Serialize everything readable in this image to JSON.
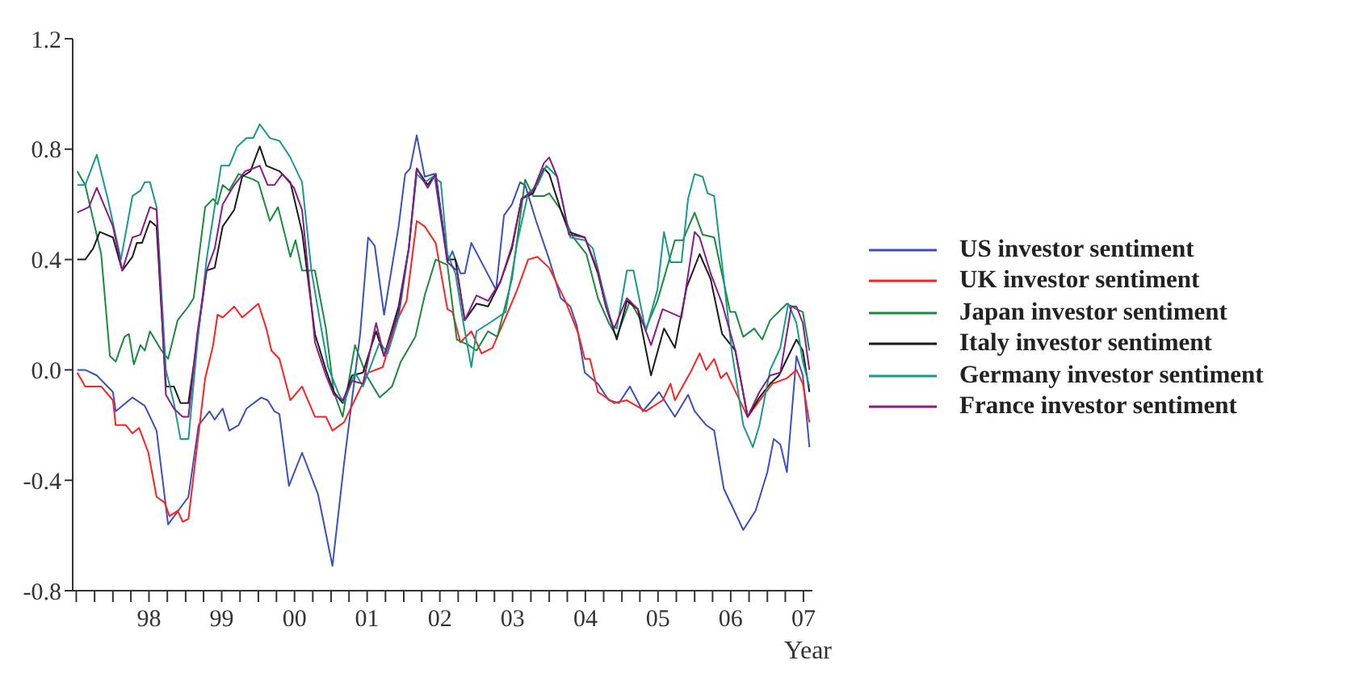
{
  "chart_data": {
    "type": "line",
    "xlabel": "Year",
    "legend": "right",
    "xlim": [
      "1997-06-13",
      "2007-08-15"
    ],
    "xticks": [
      {
        "value": "1997-07-01",
        "label": null
      },
      {
        "value": "1997-10-01",
        "label": null
      },
      {
        "value": "1998-01-01",
        "label": null
      },
      {
        "value": "1998-04-01",
        "label": null
      },
      {
        "value": "1998-07-01",
        "label": "98"
      },
      {
        "value": "1998-10-01",
        "label": null
      },
      {
        "value": "1999-01-01",
        "label": null
      },
      {
        "value": "1999-04-01",
        "label": null
      },
      {
        "value": "1999-07-01",
        "label": "99"
      },
      {
        "value": "1999-10-01",
        "label": null
      },
      {
        "value": "2000-01-01",
        "label": null
      },
      {
        "value": "2000-04-01",
        "label": null
      },
      {
        "value": "2000-07-01",
        "label": "00"
      },
      {
        "value": "2000-10-01",
        "label": null
      },
      {
        "value": "2001-01-01",
        "label": null
      },
      {
        "value": "2001-04-01",
        "label": null
      },
      {
        "value": "2001-07-01",
        "label": "01"
      },
      {
        "value": "2001-10-01",
        "label": null
      },
      {
        "value": "2002-01-01",
        "label": null
      },
      {
        "value": "2002-04-01",
        "label": null
      },
      {
        "value": "2002-07-01",
        "label": "02"
      },
      {
        "value": "2002-10-01",
        "label": null
      },
      {
        "value": "2003-01-01",
        "label": null
      },
      {
        "value": "2003-04-01",
        "label": null
      },
      {
        "value": "2003-07-01",
        "label": "03"
      },
      {
        "value": "2003-10-01",
        "label": null
      },
      {
        "value": "2004-01-01",
        "label": null
      },
      {
        "value": "2004-04-01",
        "label": null
      },
      {
        "value": "2004-07-01",
        "label": "04"
      },
      {
        "value": "2004-10-01",
        "label": null
      },
      {
        "value": "2005-01-01",
        "label": null
      },
      {
        "value": "2005-04-01",
        "label": null
      },
      {
        "value": "2005-07-01",
        "label": "05"
      },
      {
        "value": "2005-10-01",
        "label": null
      },
      {
        "value": "2006-01-01",
        "label": null
      },
      {
        "value": "2006-04-01",
        "label": null
      },
      {
        "value": "2006-07-01",
        "label": "06"
      },
      {
        "value": "2006-10-01",
        "label": null
      },
      {
        "value": "2007-01-01",
        "label": null
      },
      {
        "value": "2007-04-01",
        "label": null
      },
      {
        "value": "2007-07-01",
        "label": "07"
      }
    ],
    "ylim": [
      -0.8,
      1.2
    ],
    "yticks": [
      -0.8,
      -0.4,
      {
        "value": 0,
        "label": "0.0"
      },
      0.4,
      0.8,
      1.2
    ],
    "series": [
      {
        "name": "US investor sentiment",
        "color": "#3a4fc0",
        "x": [
          "1997-07-06",
          "1997-08-15",
          "1997-10-12",
          "1998-01-01",
          "1998-01-15",
          "1998-04-09",
          "1998-06-10",
          "1998-08-08",
          "1998-10-05",
          "1999-01-15",
          "1999-03-07",
          "1999-05-01",
          "1999-05-27",
          "1999-07-06",
          "1999-08-08",
          "1999-09-24",
          "1999-11-03",
          "2000-01-15",
          "2000-02-17",
          "2000-03-22",
          "2000-04-16",
          "2000-06-03",
          "2000-08-08",
          "2000-10-27",
          "2001-01-08",
          "2001-03-07",
          "2001-05-27",
          "2001-07-06",
          "2001-08-08",
          "2001-09-24",
          "2001-12-06",
          "2002-01-08",
          "2002-02-02",
          "2002-03-07",
          "2002-04-16",
          "2002-06-03",
          "2002-08-08",
          "2002-09-02",
          "2002-10-12",
          "2002-11-03",
          "2002-12-06",
          "2003-02-10",
          "2003-04-09",
          "2003-05-19",
          "2003-06-28",
          "2003-08-08",
          "2003-09-02",
          "2003-10-27",
          "2004-01-01",
          "2004-02-28",
          "2004-04-16",
          "2004-05-19",
          "2004-06-28",
          "2004-09-02",
          "2004-10-27",
          "2004-12-17",
          "2005-02-10",
          "2005-04-16",
          "2005-07-06",
          "2005-09-24",
          "2005-11-29",
          "2006-01-01",
          "2006-02-28",
          "2006-04-09",
          "2006-05-27",
          "2006-09-02",
          "2006-11-03",
          "2007-01-01",
          "2007-02-02",
          "2007-03-07",
          "2007-04-09",
          "2007-05-27",
          "2007-06-28",
          "2007-07-31"
        ],
        "values": [
          0,
          0,
          -0.02,
          -0.08,
          -0.15,
          -0.1,
          -0.13,
          -0.22,
          -0.56,
          -0.46,
          -0.2,
          -0.15,
          -0.18,
          -0.14,
          -0.22,
          -0.2,
          -0.14,
          -0.1,
          -0.11,
          -0.15,
          -0.16,
          -0.42,
          -0.3,
          -0.45,
          -0.71,
          -0.34,
          0.13,
          0.48,
          0.45,
          0.2,
          0.52,
          0.71,
          0.73,
          0.85,
          0.7,
          0.71,
          0.39,
          0.43,
          0.35,
          0.35,
          0.46,
          0.37,
          0.29,
          0.56,
          0.6,
          0.68,
          0.67,
          0.54,
          0.4,
          0.26,
          0.23,
          0.16,
          -0.01,
          -0.05,
          -0.11,
          -0.12,
          -0.06,
          -0.15,
          -0.08,
          -0.17,
          -0.09,
          -0.15,
          -0.2,
          -0.22,
          -0.43,
          -0.58,
          -0.51,
          -0.37,
          -0.25,
          -0.27,
          -0.37,
          0.05,
          -0.02,
          -0.28
        ]
      },
      {
        "name": "UK investor sentiment",
        "color": "#ff2020",
        "x": [
          "1997-07-06",
          "1997-08-15",
          "1997-11-03",
          "1998-01-01",
          "1998-01-15",
          "1998-03-07",
          "1998-04-09",
          "1998-05-12",
          "1998-06-28",
          "1998-08-08",
          "1998-09-17",
          "1998-10-12",
          "1998-11-22",
          "1998-12-17",
          "1999-01-15",
          "1999-04-09",
          "1999-05-19",
          "1999-06-10",
          "1999-07-06",
          "1999-09-02",
          "1999-10-12",
          "2000-01-01",
          "2000-02-10",
          "2000-03-07",
          "2000-04-16",
          "2000-06-10",
          "2000-08-08",
          "2000-10-12",
          "2000-12-06",
          "2001-01-08",
          "2001-03-07",
          "2001-05-19",
          "2001-07-06",
          "2001-09-17",
          "2001-11-22",
          "2002-01-15",
          "2002-03-07",
          "2002-04-16",
          "2002-06-10",
          "2002-08-08",
          "2002-09-02",
          "2002-10-12",
          "2002-12-06",
          "2003-01-26",
          "2003-03-22",
          "2003-05-27",
          "2003-07-24",
          "2003-09-17",
          "2003-11-03",
          "2004-01-01",
          "2004-03-22",
          "2004-05-27",
          "2004-06-28",
          "2004-07-24",
          "2004-09-02",
          "2004-11-22",
          "2005-01-26",
          "2005-05-01",
          "2005-07-24",
          "2005-09-02",
          "2005-09-24",
          "2005-12-17",
          "2006-01-26",
          "2006-02-28",
          "2006-04-09",
          "2006-05-12",
          "2006-06-10",
          "2006-08-08",
          "2006-09-24",
          "2006-11-03",
          "2007-01-26",
          "2007-04-09",
          "2007-05-27",
          "2007-06-28",
          "2007-07-31"
        ],
        "values": [
          -0.01,
          -0.06,
          -0.06,
          -0.11,
          -0.2,
          -0.2,
          -0.23,
          -0.21,
          -0.3,
          -0.46,
          -0.48,
          -0.53,
          -0.51,
          -0.55,
          -0.54,
          -0.03,
          0.09,
          0.2,
          0.19,
          0.23,
          0.19,
          0.24,
          0.15,
          0.07,
          0.04,
          -0.11,
          -0.06,
          -0.17,
          -0.17,
          -0.22,
          -0.19,
          -0.08,
          -0.01,
          0.01,
          0.17,
          0.25,
          0.54,
          0.52,
          0.46,
          0.22,
          0.21,
          0.1,
          0.14,
          0.06,
          0.08,
          0.19,
          0.29,
          0.4,
          0.41,
          0.37,
          0.25,
          0.13,
          0.04,
          0.04,
          -0.08,
          -0.12,
          -0.11,
          -0.15,
          -0.11,
          -0.05,
          -0.11,
          0,
          0.06,
          0,
          0.04,
          -0.03,
          -0.01,
          -0.1,
          -0.17,
          -0.13,
          -0.05,
          -0.03,
          0,
          -0.05,
          -0.19
        ]
      },
      {
        "name": "Japan investor sentiment",
        "color": "#1a8a3c",
        "x": [
          "1997-07-06",
          "1997-08-15",
          "1997-11-03",
          "1997-12-17",
          "1998-01-15",
          "1998-02-28",
          "1998-03-22",
          "1998-04-16",
          "1998-05-19",
          "1998-06-10",
          "1998-07-06",
          "1998-09-02",
          "1998-10-05",
          "1998-11-22",
          "1999-01-15",
          "1999-02-10",
          "1999-04-09",
          "1999-05-19",
          "1999-06-10",
          "1999-07-06",
          "1999-08-08",
          "1999-09-24",
          "1999-12-06",
          "2000-01-01",
          "2000-02-28",
          "2000-04-09",
          "2000-06-10",
          "2000-07-06",
          "2000-08-08",
          "2000-10-12",
          "2000-12-06",
          "2001-01-15",
          "2001-02-28",
          "2001-05-01",
          "2001-06-28",
          "2001-09-02",
          "2001-11-03",
          "2001-12-17",
          "2002-02-28",
          "2002-04-16",
          "2002-06-10",
          "2002-08-08",
          "2002-09-24",
          "2002-11-22",
          "2003-01-01",
          "2003-02-28",
          "2003-04-16",
          "2003-06-28",
          "2003-09-02",
          "2003-10-12",
          "2003-12-06",
          "2004-01-01",
          "2004-02-28",
          "2004-05-01",
          "2004-07-06",
          "2004-09-02",
          "2004-10-27",
          "2004-12-06",
          "2005-02-10",
          "2005-05-01",
          "2005-06-28",
          "2005-09-24",
          "2005-11-03",
          "2006-01-01",
          "2006-02-10",
          "2006-04-09",
          "2006-06-28",
          "2006-07-24",
          "2006-09-02",
          "2006-10-27",
          "2006-12-06",
          "2007-01-15",
          "2007-04-09",
          "2007-05-27",
          "2007-06-28",
          "2007-07-31"
        ],
        "values": [
          0.72,
          0.67,
          0.42,
          0.05,
          0.03,
          0.12,
          0.13,
          0.02,
          0.09,
          0.07,
          0.14,
          0.07,
          0.04,
          0.18,
          0.23,
          0.26,
          0.59,
          0.62,
          0.6,
          0.67,
          0.65,
          0.71,
          0.69,
          0.68,
          0.54,
          0.59,
          0.41,
          0.47,
          0.36,
          0.36,
          0.15,
          -0.08,
          -0.17,
          0.09,
          -0.02,
          -0.1,
          -0.06,
          0.03,
          0.12,
          0.27,
          0.4,
          0.38,
          0.11,
          0.09,
          0.07,
          0.14,
          0.12,
          0.33,
          0.69,
          0.63,
          0.63,
          0.64,
          0.58,
          0.48,
          0.42,
          0.26,
          0.17,
          0.12,
          0.25,
          0.15,
          0.25,
          0.47,
          0.47,
          0.57,
          0.49,
          0.48,
          0.21,
          0.21,
          0.12,
          0.15,
          0.11,
          0.18,
          0.24,
          0.22,
          0.21,
          0.07
        ]
      },
      {
        "name": "Italy investor sentiment",
        "color": "#1a1a1a",
        "x": [
          "1997-07-06",
          "1997-08-15",
          "1997-09-24",
          "1997-10-27",
          "1998-01-01",
          "1998-02-17",
          "1998-04-09",
          "1998-05-01",
          "1998-05-27",
          "1998-07-06",
          "1998-08-08",
          "1998-09-24",
          "1998-11-03",
          "1998-12-06",
          "1999-01-15",
          "1999-02-28",
          "1999-04-16",
          "1999-05-27",
          "1999-07-06",
          "1999-09-02",
          "1999-10-12",
          "1999-11-22",
          "2000-01-08",
          "2000-02-10",
          "2000-04-16",
          "2000-06-10",
          "2000-08-08",
          "2000-10-12",
          "2000-12-06",
          "2001-01-15",
          "2001-02-28",
          "2001-04-16",
          "2001-06-10",
          "2001-08-15",
          "2001-09-24",
          "2001-12-06",
          "2002-01-26",
          "2002-03-07",
          "2002-05-01",
          "2002-06-10",
          "2002-08-08",
          "2002-09-17",
          "2002-11-03",
          "2003-01-01",
          "2003-02-28",
          "2003-05-01",
          "2003-06-28",
          "2003-08-15",
          "2003-10-12",
          "2003-12-06",
          "2004-01-01",
          "2004-02-28",
          "2004-04-09",
          "2004-06-28",
          "2004-09-02",
          "2004-10-12",
          "2004-12-06",
          "2005-01-26",
          "2005-03-22",
          "2005-05-27",
          "2005-07-31",
          "2005-09-24",
          "2005-11-22",
          "2006-01-26",
          "2006-03-22",
          "2006-05-19",
          "2006-07-24",
          "2006-09-24",
          "2006-11-22",
          "2007-01-15",
          "2007-02-28",
          "2007-04-16",
          "2007-05-27",
          "2007-06-28",
          "2007-07-31"
        ],
        "values": [
          0.4,
          0.4,
          0.44,
          0.5,
          0.48,
          0.36,
          0.41,
          0.46,
          0.46,
          0.54,
          0.52,
          -0.06,
          -0.06,
          -0.12,
          -0.12,
          0.11,
          0.36,
          0.37,
          0.52,
          0.58,
          0.7,
          0.72,
          0.81,
          0.74,
          0.72,
          0.68,
          0.5,
          0.13,
          0,
          -0.08,
          -0.12,
          -0.02,
          -0.01,
          0.14,
          0.05,
          0.23,
          0.44,
          0.73,
          0.67,
          0.71,
          0.4,
          0.4,
          0.18,
          0.24,
          0.23,
          0.32,
          0.44,
          0.62,
          0.64,
          0.73,
          0.71,
          0.58,
          0.5,
          0.48,
          0.35,
          0.23,
          0.11,
          0.25,
          0.22,
          -0.02,
          0.15,
          0.08,
          0.3,
          0.42,
          0.33,
          0.13,
          0.07,
          -0.17,
          -0.1,
          -0.05,
          -0.02,
          0.05,
          0.11,
          0.07,
          -0.08
        ]
      },
      {
        "name": "Germany investor sentiment",
        "color": "#169a8c",
        "x": [
          "1997-07-06",
          "1997-08-15",
          "1997-10-12",
          "1997-12-06",
          "1998-02-10",
          "1998-04-09",
          "1998-05-19",
          "1998-06-10",
          "1998-07-06",
          "1998-08-08",
          "1998-09-24",
          "1998-11-03",
          "1998-12-06",
          "1999-01-15",
          "1999-02-28",
          "1999-04-16",
          "1999-06-28",
          "1999-08-08",
          "1999-09-17",
          "1999-11-03",
          "1999-12-06",
          "2000-01-08",
          "2000-02-28",
          "2000-04-16",
          "2000-06-10",
          "2000-08-08",
          "2000-09-24",
          "2000-11-03",
          "2000-12-17",
          "2001-02-10",
          "2001-03-07",
          "2001-05-01",
          "2001-06-10",
          "2001-09-02",
          "2001-10-12",
          "2001-12-06",
          "2002-01-26",
          "2002-03-07",
          "2002-04-16",
          "2002-05-27",
          "2002-07-06",
          "2002-08-08",
          "2002-09-17",
          "2002-10-27",
          "2002-12-06",
          "2003-01-01",
          "2003-03-07",
          "2003-05-27",
          "2003-07-24",
          "2003-09-17",
          "2003-11-03",
          "2003-12-17",
          "2004-02-10",
          "2004-03-22",
          "2004-04-16",
          "2004-06-28",
          "2004-08-08",
          "2004-09-24",
          "2004-11-14",
          "2004-12-06",
          "2005-01-26",
          "2005-02-28",
          "2005-05-01",
          "2005-06-28",
          "2005-07-31",
          "2005-09-02",
          "2005-10-27",
          "2005-11-29",
          "2006-01-01",
          "2006-02-10",
          "2006-03-07",
          "2006-04-09",
          "2006-05-27",
          "2006-07-06",
          "2006-09-02",
          "2006-10-20",
          "2006-11-22",
          "2007-01-15",
          "2007-03-07",
          "2007-04-16",
          "2007-05-27",
          "2007-06-28",
          "2007-07-31"
        ],
        "values": [
          0.67,
          0.67,
          0.78,
          0.62,
          0.4,
          0.63,
          0.65,
          0.68,
          0.68,
          0.59,
          0,
          -0.12,
          -0.25,
          -0.25,
          0.09,
          0.4,
          0.74,
          0.74,
          0.81,
          0.84,
          0.84,
          0.89,
          0.84,
          0.83,
          0.77,
          0.68,
          0.36,
          0.19,
          0.01,
          -0.09,
          -0.12,
          -0.01,
          -0.06,
          0.1,
          0.06,
          0.19,
          0.44,
          0.71,
          0.68,
          0.7,
          0.68,
          0.42,
          0.35,
          0.17,
          0.01,
          0.14,
          0.17,
          0.21,
          0.46,
          0.64,
          0.67,
          0.74,
          0.7,
          0.56,
          0.48,
          0.47,
          0.44,
          0.3,
          0.16,
          0.15,
          0.36,
          0.36,
          0.14,
          0.29,
          0.5,
          0.39,
          0.39,
          0.62,
          0.71,
          0.7,
          0.64,
          0.63,
          0.33,
          0.07,
          -0.2,
          -0.28,
          -0.2,
          0,
          0.08,
          0.24,
          0.17,
          0.03,
          -0.06
        ]
      },
      {
        "name": "France investor sentiment",
        "color": "#8a1a8a",
        "x": [
          "1997-07-06",
          "1997-09-02",
          "1997-10-12",
          "1998-01-01",
          "1998-02-17",
          "1998-04-09",
          "1998-05-19",
          "1998-07-06",
          "1998-08-08",
          "1998-09-24",
          "1998-11-03",
          "1998-12-17",
          "1999-01-15",
          "1999-02-28",
          "1999-04-16",
          "1999-05-27",
          "1999-07-06",
          "1999-09-02",
          "1999-10-27",
          "1999-12-06",
          "2000-01-08",
          "2000-02-17",
          "2000-03-22",
          "2000-05-01",
          "2000-06-28",
          "2000-08-08",
          "2000-10-12",
          "2000-12-06",
          "2001-01-15",
          "2001-02-28",
          "2001-04-16",
          "2001-06-10",
          "2001-08-15",
          "2001-09-24",
          "2001-12-06",
          "2002-01-26",
          "2002-03-07",
          "2002-05-01",
          "2002-06-10",
          "2002-08-08",
          "2002-09-24",
          "2002-11-03",
          "2003-01-01",
          "2003-02-28",
          "2003-05-01",
          "2003-06-28",
          "2003-08-15",
          "2003-10-12",
          "2003-12-06",
          "2004-01-01",
          "2004-02-10",
          "2004-03-22",
          "2004-04-09",
          "2004-06-28",
          "2004-09-02",
          "2004-10-12",
          "2004-11-22",
          "2005-01-26",
          "2005-03-22",
          "2005-05-27",
          "2005-07-24",
          "2005-10-27",
          "2006-01-01",
          "2006-01-26",
          "2006-03-22",
          "2006-05-19",
          "2006-07-24",
          "2006-09-24",
          "2006-11-22",
          "2007-01-15",
          "2007-03-07",
          "2007-05-01",
          "2007-05-27",
          "2007-06-28",
          "2007-07-31"
        ],
        "values": [
          0.57,
          0.59,
          0.66,
          0.52,
          0.36,
          0.48,
          0.49,
          0.59,
          0.58,
          -0.09,
          -0.14,
          -0.17,
          -0.17,
          0.13,
          0.36,
          0.44,
          0.6,
          0.67,
          0.72,
          0.73,
          0.74,
          0.67,
          0.67,
          0.71,
          0.66,
          0.58,
          0.1,
          -0.02,
          -0.09,
          -0.11,
          -0.04,
          -0.05,
          0.17,
          0.05,
          0.21,
          0.44,
          0.73,
          0.66,
          0.71,
          0.39,
          0.36,
          0.18,
          0.27,
          0.25,
          0.32,
          0.45,
          0.62,
          0.65,
          0.75,
          0.77,
          0.7,
          0.56,
          0.49,
          0.48,
          0.36,
          0.23,
          0.15,
          0.26,
          0.22,
          0.09,
          0.22,
          0.19,
          0.5,
          0.48,
          0.35,
          0.24,
          0.07,
          -0.17,
          -0.08,
          -0.02,
          -0.01,
          0.23,
          0.23,
          0.17,
          0
        ]
      }
    ]
  }
}
